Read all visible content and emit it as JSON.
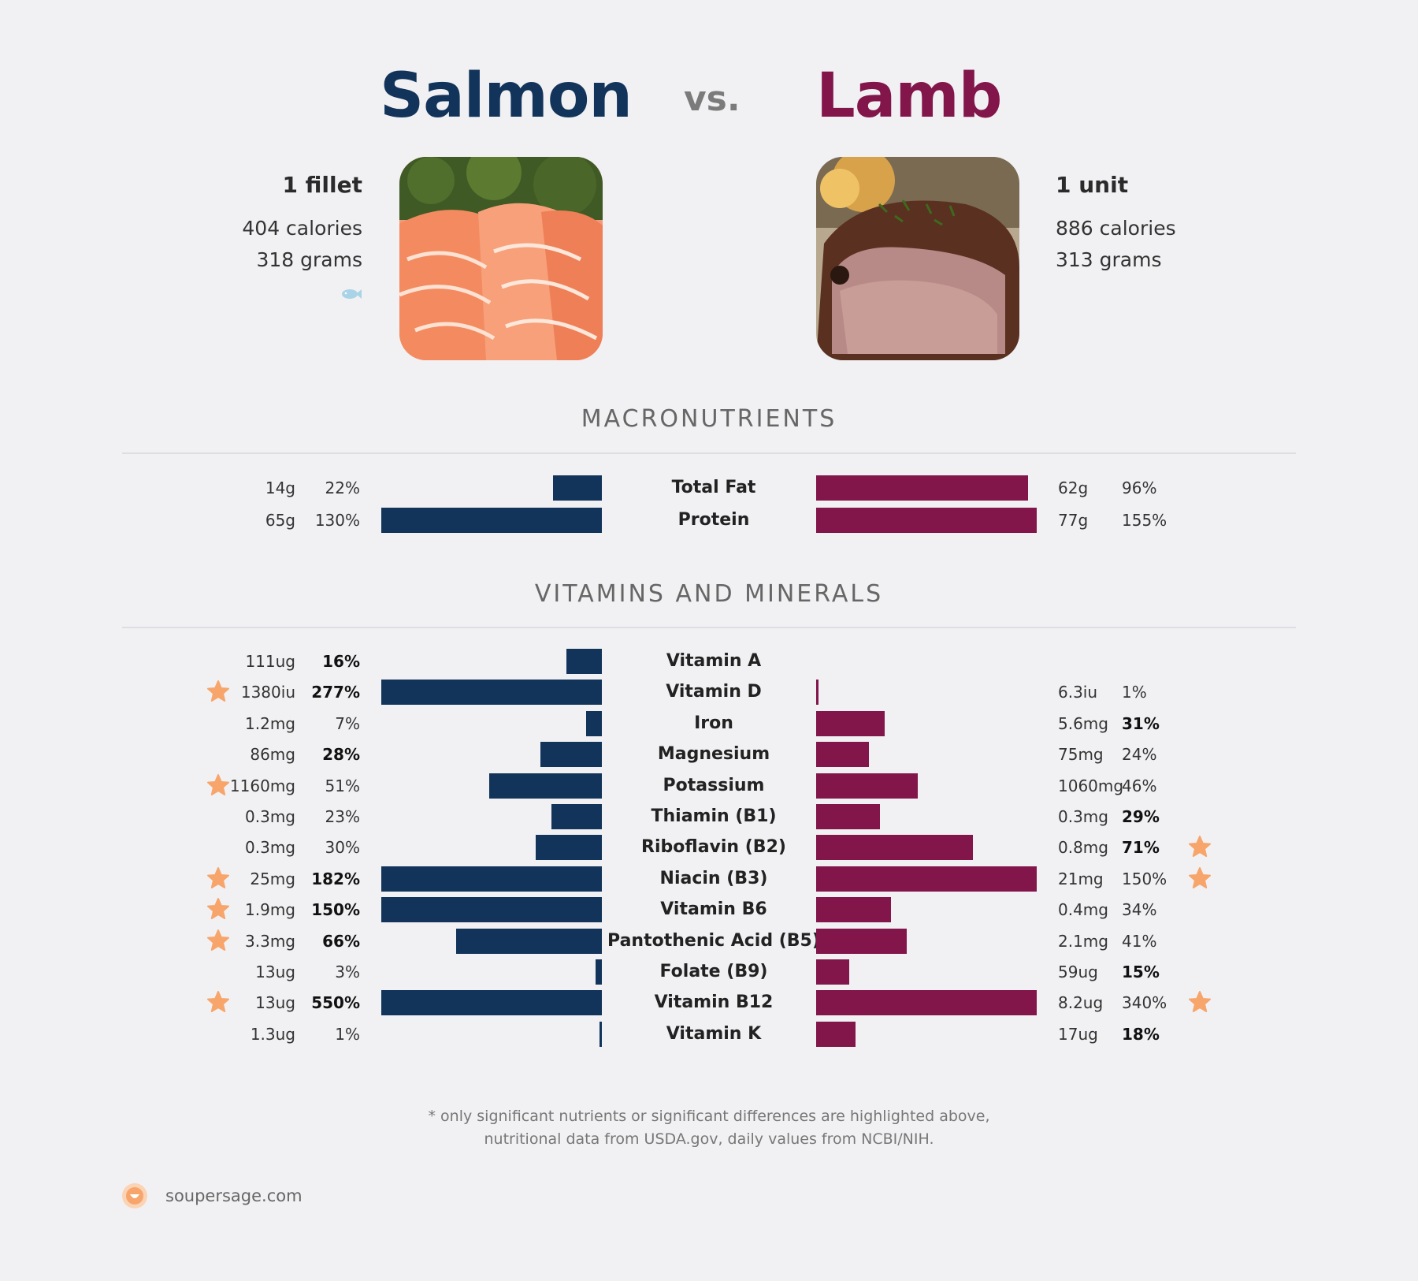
{
  "header": {
    "left_title": "Salmon",
    "vs": "vs.",
    "right_title": "Lamb"
  },
  "left_food": {
    "serving": "1 fillet",
    "calories": "404 calories",
    "weight": "318 grams",
    "badge_icon": "fish-icon"
  },
  "right_food": {
    "serving": "1 unit",
    "calories": "886 calories",
    "weight": "313 grams"
  },
  "colors": {
    "left": "#13345a",
    "right": "#82164a",
    "star": "#f7a56b"
  },
  "sections": {
    "macros": "MACRONUTRIENTS",
    "vitamins": "VITAMINS AND MINERALS"
  },
  "macros": [
    {
      "name": "Total Fat",
      "left_amt": "14g",
      "left_pct": "22%",
      "left_val": 22,
      "right_amt": "62g",
      "right_pct": "96%",
      "right_val": 96
    },
    {
      "name": "Protein",
      "left_amt": "65g",
      "left_pct": "130%",
      "left_val": 130,
      "right_amt": "77g",
      "right_pct": "155%",
      "right_val": 155
    }
  ],
  "vitamins": [
    {
      "name": "Vitamin A",
      "left_amt": "111ug",
      "left_pct": "16%",
      "left_val": 16,
      "left_bold": true,
      "left_star": false,
      "right_amt": "",
      "right_pct": "",
      "right_val": 0,
      "right_bold": false,
      "right_star": false
    },
    {
      "name": "Vitamin D",
      "left_amt": "1380iu",
      "left_pct": "277%",
      "left_val": 277,
      "left_bold": true,
      "left_star": true,
      "right_amt": "6.3iu",
      "right_pct": "1%",
      "right_val": 1,
      "right_bold": false,
      "right_star": false
    },
    {
      "name": "Iron",
      "left_amt": "1.2mg",
      "left_pct": "7%",
      "left_val": 7,
      "left_bold": false,
      "left_star": false,
      "right_amt": "5.6mg",
      "right_pct": "31%",
      "right_val": 31,
      "right_bold": true,
      "right_star": false
    },
    {
      "name": "Magnesium",
      "left_amt": "86mg",
      "left_pct": "28%",
      "left_val": 28,
      "left_bold": true,
      "left_star": false,
      "right_amt": "75mg",
      "right_pct": "24%",
      "right_val": 24,
      "right_bold": false,
      "right_star": false
    },
    {
      "name": "Potassium",
      "left_amt": "1160mg",
      "left_pct": "51%",
      "left_val": 51,
      "left_bold": false,
      "left_star": true,
      "right_amt": "1060mg",
      "right_pct": "46%",
      "right_val": 46,
      "right_bold": false,
      "right_star": false
    },
    {
      "name": "Thiamin (B1)",
      "left_amt": "0.3mg",
      "left_pct": "23%",
      "left_val": 23,
      "left_bold": false,
      "left_star": false,
      "right_amt": "0.3mg",
      "right_pct": "29%",
      "right_val": 29,
      "right_bold": true,
      "right_star": false
    },
    {
      "name": "Riboflavin (B2)",
      "left_amt": "0.3mg",
      "left_pct": "30%",
      "left_val": 30,
      "left_bold": false,
      "left_star": false,
      "right_amt": "0.8mg",
      "right_pct": "71%",
      "right_val": 71,
      "right_bold": true,
      "right_star": true
    },
    {
      "name": "Niacin (B3)",
      "left_amt": "25mg",
      "left_pct": "182%",
      "left_val": 182,
      "left_bold": true,
      "left_star": true,
      "right_amt": "21mg",
      "right_pct": "150%",
      "right_val": 150,
      "right_bold": false,
      "right_star": true
    },
    {
      "name": "Vitamin B6",
      "left_amt": "1.9mg",
      "left_pct": "150%",
      "left_val": 150,
      "left_bold": true,
      "left_star": true,
      "right_amt": "0.4mg",
      "right_pct": "34%",
      "right_val": 34,
      "right_bold": false,
      "right_star": false
    },
    {
      "name": "Pantothenic Acid (B5)",
      "left_amt": "3.3mg",
      "left_pct": "66%",
      "left_val": 66,
      "left_bold": true,
      "left_star": true,
      "right_amt": "2.1mg",
      "right_pct": "41%",
      "right_val": 41,
      "right_bold": false,
      "right_star": false
    },
    {
      "name": "Folate (B9)",
      "left_amt": "13ug",
      "left_pct": "3%",
      "left_val": 3,
      "left_bold": false,
      "left_star": false,
      "right_amt": "59ug",
      "right_pct": "15%",
      "right_val": 15,
      "right_bold": true,
      "right_star": false
    },
    {
      "name": "Vitamin B12",
      "left_amt": "13ug",
      "left_pct": "550%",
      "left_val": 550,
      "left_bold": true,
      "left_star": true,
      "right_amt": "8.2ug",
      "right_pct": "340%",
      "right_val": 340,
      "right_bold": false,
      "right_star": true
    },
    {
      "name": "Vitamin K",
      "left_amt": "1.3ug",
      "left_pct": "1%",
      "left_val": 1,
      "left_bold": false,
      "left_star": false,
      "right_amt": "17ug",
      "right_pct": "18%",
      "right_val": 18,
      "right_bold": true,
      "right_star": false
    }
  ],
  "footnote": {
    "line1": "* only significant nutrients or significant differences are highlighted above,",
    "line2": "nutritional data from USDA.gov, daily values from NCBI/NIH."
  },
  "brand": {
    "text": "soupersage.com",
    "logo_icon": "soupersage-logo-icon"
  }
}
